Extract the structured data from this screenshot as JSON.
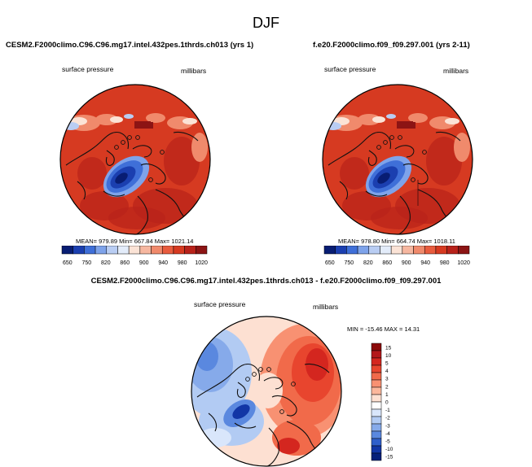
{
  "season": "DJF",
  "chart_data": [
    {
      "type": "heatmap",
      "projection": "polar stereographic (north pole)",
      "title": "CESM2.F2000climo.C96.C96.mg17.intel.432pes.1thrds.ch013 (yrs 1)",
      "variable": "surface pressure",
      "units": "millibars",
      "stats": "MEAN= 979.89  Min= 667.84  Max= 1021.14",
      "mean": 979.89,
      "min": 667.84,
      "max": 1021.14,
      "colorbar_ticks": [
        "650",
        "750",
        "820",
        "860",
        "900",
        "940",
        "980",
        "1020"
      ],
      "colorbar_colors": [
        "#081d73",
        "#1b3fb0",
        "#3f6fd8",
        "#7ea3ea",
        "#b9cdf3",
        "#e3ecfa",
        "#fbe3d6",
        "#f6b7a0",
        "#f08a6c",
        "#e85c3e",
        "#d63a21",
        "#b8221a",
        "#8c1414"
      ]
    },
    {
      "type": "heatmap",
      "projection": "polar stereographic (north pole)",
      "title": "f.e20.F2000climo.f09_f09.297.001 (yrs 2-11)",
      "variable": "surface pressure",
      "units": "millibars",
      "stats": "MEAN= 978.80  Min= 664.74  Max= 1018.11",
      "mean": 978.8,
      "min": 664.74,
      "max": 1018.11,
      "colorbar_ticks": [
        "650",
        "750",
        "820",
        "860",
        "900",
        "940",
        "980",
        "1020"
      ],
      "colorbar_colors": [
        "#081d73",
        "#1b3fb0",
        "#3f6fd8",
        "#7ea3ea",
        "#b9cdf3",
        "#e3ecfa",
        "#fbe3d6",
        "#f6b7a0",
        "#f08a6c",
        "#e85c3e",
        "#d63a21",
        "#b8221a",
        "#8c1414"
      ]
    },
    {
      "type": "heatmap",
      "projection": "polar stereographic (north pole)",
      "title": "CESM2.F2000climo.C96.C96.mg17.intel.432pes.1thrds.ch013 - f.e20.F2000climo.f09_f09.297.001",
      "variable": "surface pressure",
      "units": "millibars",
      "stats": "MIN = -15.46  MAX =  14.31",
      "min": -15.46,
      "max": 14.31,
      "colorbar_labels": [
        "15",
        "10",
        "5",
        "4",
        "3",
        "2",
        "1",
        "0",
        "-1",
        "-2",
        "-3",
        "-4",
        "-5",
        "-10",
        "-15"
      ],
      "colorbar_colors": [
        "#8b0a0a",
        "#b3171a",
        "#d4261f",
        "#e8452e",
        "#f16a4a",
        "#f89172",
        "#fbb79c",
        "#fde0d2",
        "#ffffff",
        "#d9e6fb",
        "#b2cbf3",
        "#86aaea",
        "#5a88df",
        "#2f5fcb",
        "#1236a6",
        "#06207a"
      ]
    }
  ]
}
